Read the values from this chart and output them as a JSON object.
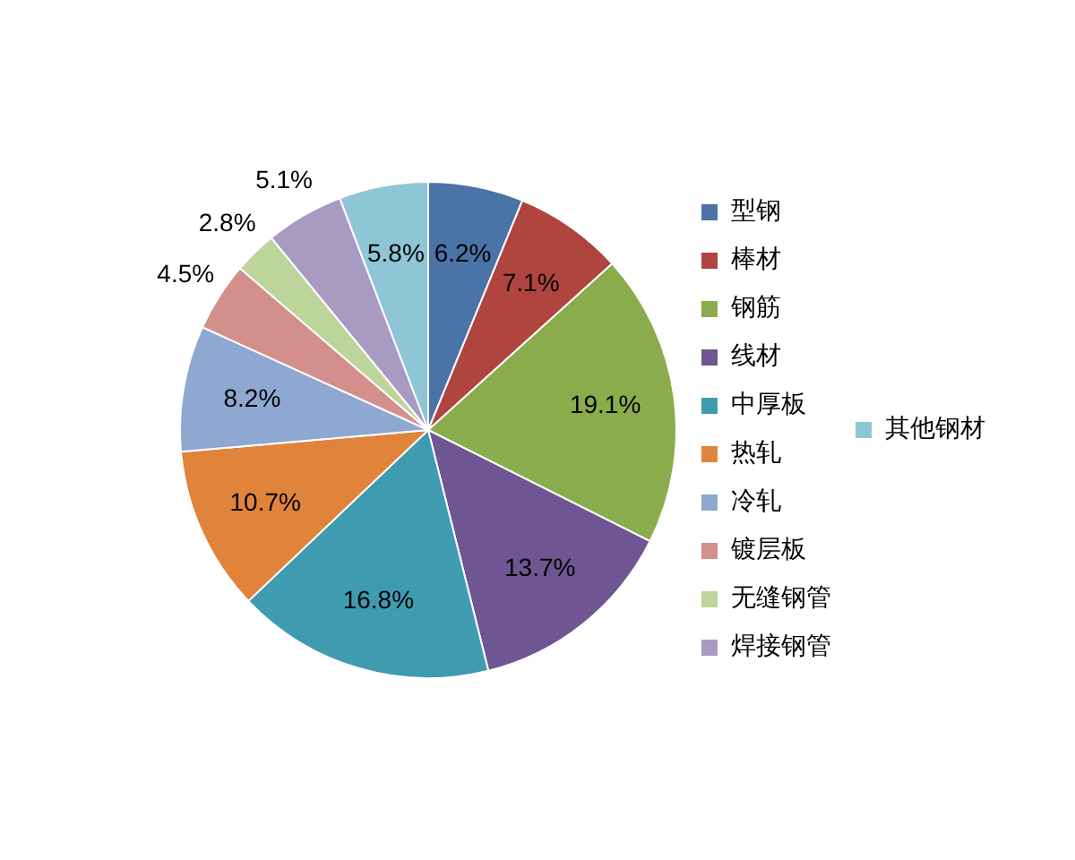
{
  "chart_data": {
    "type": "pie",
    "categories": [
      "型钢",
      "棒材",
      "钢筋",
      "线材",
      "中厚板",
      "热轧",
      "冷轧",
      "镀层板",
      "无缝钢管",
      "焊接钢管",
      "其他钢材"
    ],
    "values": [
      6.2,
      7.1,
      19.1,
      13.7,
      16.8,
      10.7,
      8.2,
      4.5,
      2.8,
      5.1,
      5.8
    ],
    "colors": [
      "#4a73a8",
      "#b0443f",
      "#8aac4c",
      "#6f5591",
      "#3f9bb0",
      "#e0843c",
      "#8ea8d2",
      "#d38f8c",
      "#bdd49a",
      "#a89bc2",
      "#8fc6d6"
    ],
    "value_labels": [
      "6.2%",
      "7.1%",
      "19.1%",
      "13.7%",
      "16.8%",
      "10.7%",
      "8.2%",
      "4.5%",
      "2.8%",
      "5.1%",
      "5.8%"
    ],
    "legend": "right"
  }
}
